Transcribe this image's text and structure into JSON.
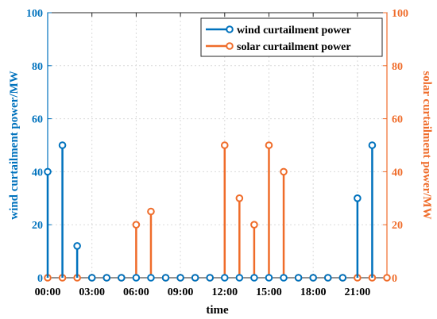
{
  "chart_data": {
    "type": "stem",
    "xlabel": "time",
    "ylabel_left": "wind curtailment power/MW",
    "ylabel_right": "solar curtailment power/MW",
    "xlim": [
      0,
      23
    ],
    "ylim": [
      0,
      100
    ],
    "x_ticks": [
      0,
      3,
      6,
      9,
      12,
      15,
      18,
      21
    ],
    "x_tick_labels": [
      "00:00",
      "03:00",
      "06:00",
      "09:00",
      "12:00",
      "15:00",
      "18:00",
      "21:00"
    ],
    "y_ticks": [
      0,
      20,
      40,
      60,
      80,
      100
    ],
    "grid": true,
    "legend_position": "top-right",
    "series": [
      {
        "name": "wind curtailment power",
        "axis": "left",
        "color": "#0072BD",
        "x": [
          0,
          1,
          2,
          3,
          4,
          5,
          6,
          7,
          8,
          9,
          10,
          11,
          12,
          13,
          14,
          15,
          16,
          17,
          18,
          19,
          20,
          21,
          22
        ],
        "values": [
          40,
          50,
          12,
          0,
          0,
          0,
          0,
          0,
          0,
          0,
          0,
          0,
          0,
          0,
          0,
          0,
          0,
          0,
          0,
          0,
          0,
          30,
          50
        ]
      },
      {
        "name": "solar curtailment power",
        "axis": "right",
        "color": "#EF6C2A",
        "x": [
          0,
          1,
          2,
          3,
          4,
          5,
          6,
          7,
          8,
          9,
          10,
          11,
          12,
          13,
          14,
          15,
          16,
          17,
          18,
          19,
          20,
          21,
          22,
          23
        ],
        "values": [
          0,
          0,
          0,
          0,
          0,
          0,
          20,
          25,
          0,
          0,
          0,
          0,
          50,
          30,
          20,
          50,
          40,
          0,
          0,
          0,
          0,
          0,
          0,
          0
        ]
      }
    ]
  }
}
